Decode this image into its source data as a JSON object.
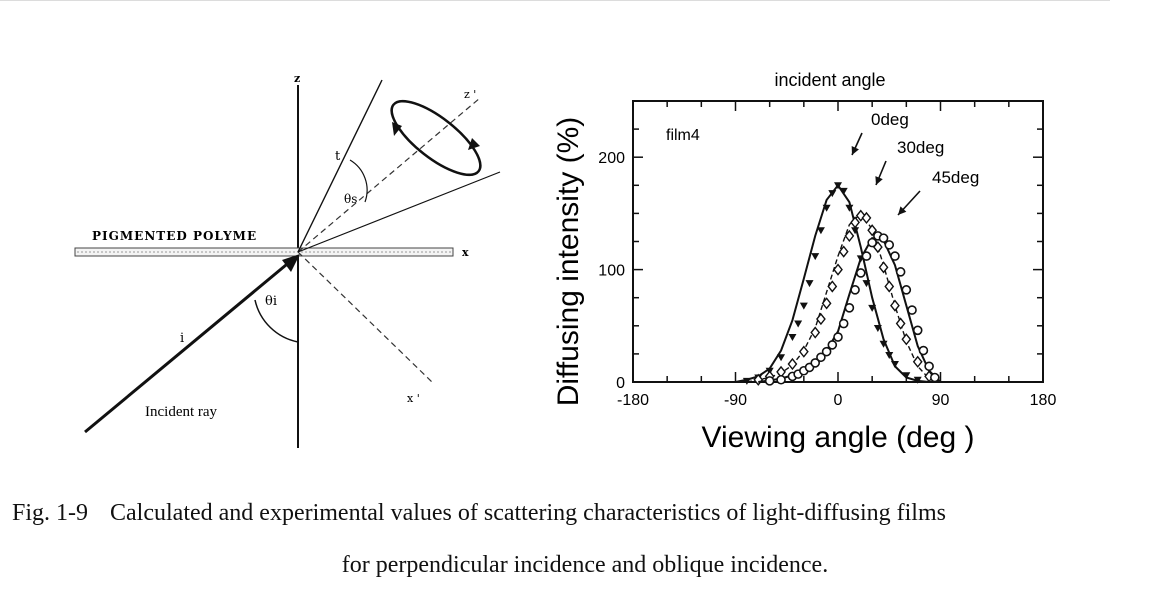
{
  "diagram": {
    "z_label": "z",
    "x_label": "x",
    "z_prime_label": "z '",
    "x_prime_label": "x '",
    "t_label": "t",
    "i_label": "i",
    "theta_s_label": "θs",
    "theta_i_label": "θi",
    "film_label": "PIGMENTED POLYME",
    "ray_label": "Incident ray"
  },
  "chart_data": {
    "type": "line",
    "title": "incident angle",
    "xlabel": "Viewing angle (deg )",
    "ylabel": "Diffusing intensity (%)",
    "xlim": [
      -180,
      180
    ],
    "ylim": [
      0,
      250
    ],
    "xticks": [
      -180,
      -90,
      0,
      90,
      180
    ],
    "yticks": [
      0,
      100,
      200
    ],
    "xtick_labels": [
      "-180",
      "-90",
      "0",
      "90",
      "180"
    ],
    "ytick_labels": [
      "0",
      "100",
      "200"
    ],
    "annotation": "film4",
    "series": [
      {
        "name": "0deg",
        "marker": "triangle",
        "line": "solid",
        "curve_x": [
          -90,
          -80,
          -70,
          -60,
          -50,
          -40,
          -30,
          -20,
          -10,
          0,
          10,
          20,
          30,
          40,
          50,
          60,
          70,
          80
        ],
        "curve_y": [
          0,
          2,
          5,
          12,
          28,
          55,
          92,
          130,
          162,
          175,
          160,
          120,
          75,
          38,
          14,
          4,
          1,
          0
        ],
        "points_x": [
          -80,
          -70,
          -60,
          -50,
          -40,
          -35,
          -30,
          -25,
          -20,
          -15,
          -10,
          -5,
          0,
          5,
          10,
          15,
          20,
          25,
          30,
          35,
          40,
          45,
          50,
          60,
          70
        ],
        "points_y": [
          1,
          4,
          10,
          22,
          40,
          52,
          68,
          88,
          112,
          135,
          155,
          168,
          175,
          170,
          155,
          135,
          110,
          88,
          66,
          48,
          34,
          24,
          16,
          6,
          2
        ]
      },
      {
        "name": "30deg",
        "marker": "diamond",
        "line": "dashed",
        "curve_x": [
          -80,
          -60,
          -50,
          -40,
          -30,
          -20,
          -10,
          0,
          10,
          20,
          30,
          40,
          50,
          60,
          70,
          80,
          90
        ],
        "curve_y": [
          0,
          4,
          8,
          15,
          28,
          48,
          80,
          112,
          140,
          150,
          136,
          104,
          68,
          36,
          14,
          3,
          0
        ],
        "points_x": [
          -70,
          -60,
          -50,
          -40,
          -30,
          -20,
          -15,
          -10,
          -5,
          0,
          5,
          10,
          15,
          20,
          25,
          30,
          35,
          40,
          45,
          50,
          55,
          60,
          70,
          80
        ],
        "points_y": [
          2,
          5,
          9,
          16,
          27,
          44,
          56,
          70,
          85,
          100,
          116,
          130,
          142,
          148,
          146,
          135,
          120,
          102,
          85,
          68,
          52,
          38,
          18,
          5
        ]
      },
      {
        "name": "45deg",
        "marker": "circle",
        "line": "solid",
        "curve_x": [
          -70,
          -50,
          -40,
          -30,
          -20,
          -10,
          0,
          10,
          20,
          30,
          40,
          50,
          60,
          70,
          80,
          90
        ],
        "curve_y": [
          0,
          3,
          6,
          11,
          18,
          28,
          45,
          78,
          110,
          128,
          126,
          104,
          68,
          32,
          10,
          0
        ],
        "points_x": [
          -60,
          -50,
          -40,
          -35,
          -30,
          -25,
          -20,
          -15,
          -10,
          -5,
          0,
          5,
          10,
          15,
          20,
          25,
          30,
          35,
          40,
          45,
          50,
          55,
          60,
          65,
          70,
          75,
          80,
          85
        ],
        "points_y": [
          1,
          2,
          5,
          7,
          10,
          13,
          17,
          22,
          27,
          33,
          40,
          52,
          66,
          82,
          97,
          112,
          124,
          130,
          128,
          122,
          112,
          98,
          82,
          64,
          46,
          28,
          14,
          4
        ]
      }
    ]
  },
  "caption": {
    "fig_label": "Fig. 1-9",
    "line1": "Calculated and experimental values of scattering characteristics of light-diffusing films",
    "line2": "for perpendicular incidence and oblique incidence."
  }
}
